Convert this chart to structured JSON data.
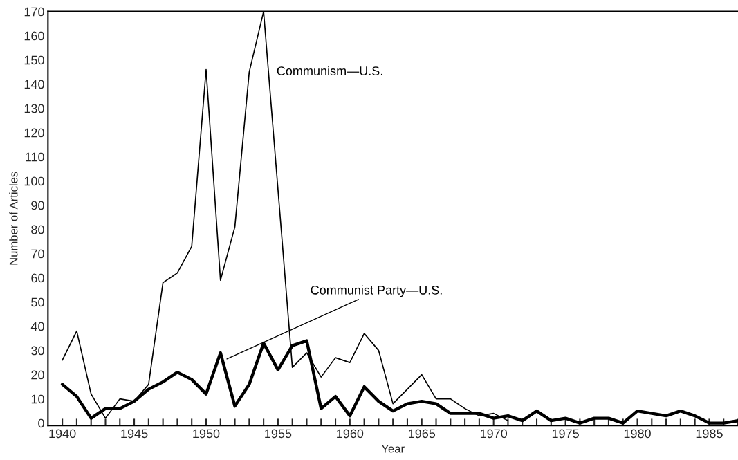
{
  "chart_data": {
    "type": "line",
    "xlabel": "Year",
    "ylabel": "Number of Articles",
    "xlim": [
      1939,
      1987
    ],
    "ylim": [
      -1,
      170
    ],
    "xticks": [
      1940,
      1945,
      1950,
      1955,
      1960,
      1965,
      1970,
      1975,
      1980,
      1985
    ],
    "yticks": [
      0,
      10,
      20,
      30,
      40,
      50,
      60,
      70,
      80,
      90,
      100,
      110,
      120,
      130,
      140,
      150,
      160,
      170
    ],
    "grid": false,
    "legend": false,
    "marker": "none",
    "line_style": "solid",
    "series": [
      {
        "name": "Communism—U.S.",
        "color": "#000000",
        "x": [
          1940,
          1941,
          1942,
          1943,
          1944,
          1945,
          1946,
          1947,
          1948,
          1949,
          1950,
          1951,
          1952,
          1953,
          1954,
          1956,
          1957,
          1958,
          1959,
          1960,
          1961,
          1962,
          1963,
          1964,
          1965,
          1966,
          1967,
          1968,
          1969,
          1970,
          1971
        ],
        "values": [
          26,
          38,
          12,
          2,
          10,
          9,
          16,
          58,
          62,
          73,
          146,
          59,
          81,
          145,
          170,
          23,
          29,
          19,
          27,
          25,
          37,
          30,
          8,
          14,
          20,
          10,
          10,
          6,
          3,
          4,
          1
        ]
      },
      {
        "name": "Communist Party—U.S.",
        "color": "#000000",
        "x": [
          1940,
          1941,
          1942,
          1943,
          1944,
          1945,
          1946,
          1947,
          1948,
          1949,
          1950,
          1951,
          1952,
          1953,
          1954,
          1955,
          1956,
          1957,
          1958,
          1959,
          1960,
          1961,
          1962,
          1963,
          1964,
          1965,
          1966,
          1967,
          1968,
          1969,
          1970,
          1971,
          1972,
          1973,
          1974,
          1975,
          1976,
          1977,
          1978,
          1979,
          1980,
          1981,
          1982,
          1983,
          1984,
          1985,
          1986,
          1987
        ],
        "values": [
          16,
          11,
          2,
          6,
          6,
          9,
          14,
          17,
          21,
          18,
          12,
          29,
          7,
          16,
          33,
          22,
          32,
          34,
          6,
          11,
          3,
          15,
          9,
          5,
          8,
          9,
          8,
          4,
          4,
          4,
          2,
          3,
          1,
          5,
          1,
          2,
          0,
          2,
          2,
          0,
          5,
          4,
          3,
          5,
          3,
          0,
          0,
          1
        ]
      }
    ]
  }
}
